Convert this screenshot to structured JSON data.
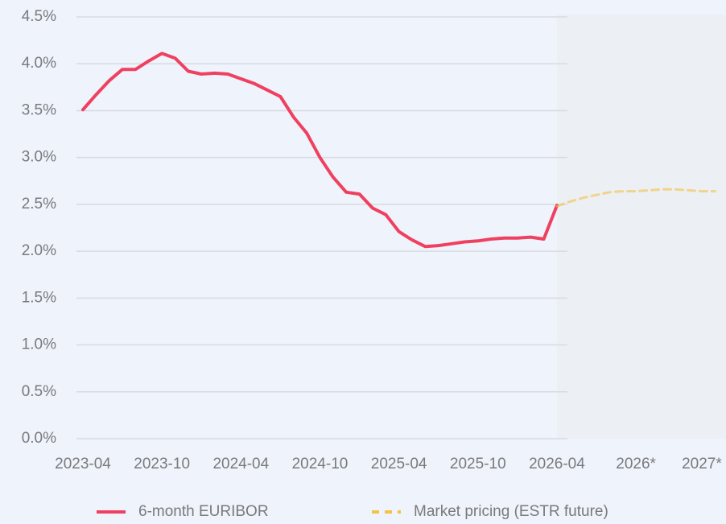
{
  "chart_data": {
    "type": "line",
    "categories": [
      "2023-04",
      null,
      null,
      null,
      null,
      null,
      "2023-10",
      null,
      null,
      null,
      null,
      null,
      "2024-04",
      null,
      null,
      null,
      null,
      null,
      "2024-10",
      null,
      null,
      null,
      null,
      null,
      "2025-04",
      null,
      null,
      null,
      null,
      null,
      "2025-10",
      null,
      null,
      null,
      null,
      null,
      "2026-04",
      null,
      null,
      null,
      null,
      null,
      "2026*",
      null,
      null,
      null,
      null,
      "2027*",
      null
    ],
    "series": [
      {
        "name": "6-month EURIBOR",
        "color": "#f0405f",
        "dashed": false,
        "values": [
          3.51,
          3.67,
          3.82,
          3.94,
          3.94,
          4.03,
          4.11,
          4.06,
          3.92,
          3.89,
          3.9,
          3.89,
          3.84,
          3.79,
          3.72,
          3.65,
          3.43,
          3.26,
          3.0,
          2.79,
          2.63,
          2.61,
          2.46,
          2.39,
          2.21,
          2.12,
          2.05,
          2.06,
          2.08,
          2.1,
          2.11,
          2.13,
          2.14,
          2.14,
          2.15,
          2.13,
          2.49,
          null,
          null,
          null,
          null,
          null,
          null,
          null,
          null,
          null,
          null,
          null,
          null
        ]
      },
      {
        "name": "Market pricing (ESTR future)",
        "color": "#f5c242",
        "dashed": true,
        "values": [
          null,
          null,
          null,
          null,
          null,
          null,
          null,
          null,
          null,
          null,
          null,
          null,
          null,
          null,
          null,
          null,
          null,
          null,
          null,
          null,
          null,
          null,
          null,
          null,
          null,
          null,
          null,
          null,
          null,
          null,
          null,
          null,
          null,
          null,
          null,
          null,
          2.48,
          2.53,
          2.57,
          2.6,
          2.63,
          2.64,
          2.64,
          2.65,
          2.66,
          2.66,
          2.65,
          2.64,
          2.64
        ]
      }
    ],
    "ylim": [
      0,
      4.5
    ],
    "yticks": [
      {
        "value": 0,
        "label": "0.0%"
      },
      {
        "value": 0.5,
        "label": "0.5%"
      },
      {
        "value": 1,
        "label": "1.0%"
      },
      {
        "value": 1.5,
        "label": "1.5%"
      },
      {
        "value": 2,
        "label": "2.0%"
      },
      {
        "value": 2.5,
        "label": "2.5%"
      },
      {
        "value": 3,
        "label": "3.0%"
      },
      {
        "value": 3.5,
        "label": "3.5%"
      },
      {
        "value": 4,
        "label": "4.0%"
      },
      {
        "value": 4.5,
        "label": "4.5%"
      }
    ],
    "grid": true,
    "legend": "bottom"
  }
}
